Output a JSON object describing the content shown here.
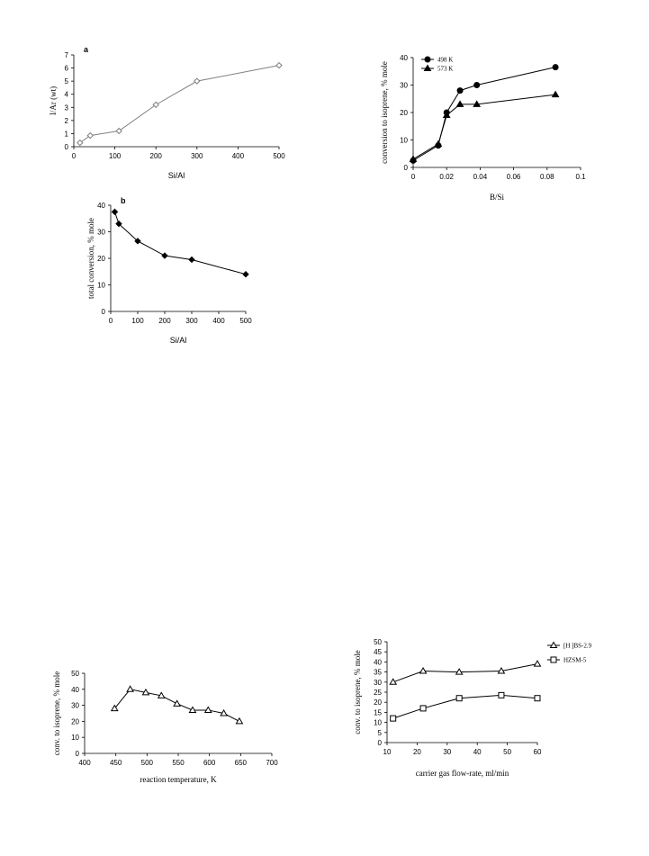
{
  "chart_data": [
    {
      "id": "a",
      "type": "line",
      "panel_label": "a",
      "xlabel": "Si/Al",
      "ylabel": "I/Ar (wt)",
      "xlim": [
        0,
        500
      ],
      "ylim": [
        0,
        7
      ],
      "xticks": [
        0,
        100,
        200,
        300,
        400,
        500
      ],
      "yticks": [
        0,
        1,
        2,
        3,
        4,
        5,
        6,
        7
      ],
      "grid": false,
      "series": [
        {
          "name": "",
          "marker": "diamond-open",
          "color": "#808080",
          "x": [
            15,
            40,
            110,
            200,
            300,
            500
          ],
          "y": [
            0.3,
            0.85,
            1.2,
            3.2,
            5.0,
            6.2
          ]
        }
      ]
    },
    {
      "id": "b",
      "type": "line",
      "panel_label": "b",
      "xlabel": "Si/Al",
      "ylabel": "total conversion, % mole",
      "xlim": [
        0,
        500
      ],
      "ylim": [
        0,
        40
      ],
      "xticks": [
        0,
        100,
        200,
        300,
        400,
        500
      ],
      "yticks": [
        0,
        10,
        20,
        30,
        40
      ],
      "grid": false,
      "series": [
        {
          "name": "",
          "marker": "diamond-filled",
          "color": "#000000",
          "x": [
            15,
            30,
            100,
            200,
            300,
            500
          ],
          "y": [
            37.5,
            33,
            26.5,
            21,
            19.5,
            14
          ]
        }
      ]
    },
    {
      "id": "c",
      "type": "line",
      "xlabel": "B/Si",
      "ylabel": "conversion to isoprene, % mole",
      "xlim": [
        0,
        0.1
      ],
      "ylim": [
        0,
        40
      ],
      "xticks": [
        "0",
        "0.02",
        "0.04",
        "0.06",
        "0.08",
        "0.1"
      ],
      "yticks": [
        0,
        10,
        20,
        30,
        40
      ],
      "grid": false,
      "legend_position": "top-left",
      "series": [
        {
          "name": "498 K",
          "marker": "circle-filled",
          "color": "#000000",
          "x": [
            0,
            0.015,
            0.02,
            0.028,
            0.038,
            0.085
          ],
          "y": [
            2.5,
            8,
            20,
            28,
            30,
            36.5
          ]
        },
        {
          "name": "573 K",
          "marker": "triangle-filled",
          "color": "#000000",
          "x": [
            0,
            0.015,
            0.02,
            0.028,
            0.038,
            0.085
          ],
          "y": [
            3,
            8.5,
            19,
            23,
            23,
            26.5
          ]
        }
      ]
    },
    {
      "id": "d",
      "type": "line",
      "xlabel": "reaction temperature, K",
      "ylabel": "conv. to isoprene, % mole",
      "xlim": [
        400,
        700
      ],
      "ylim": [
        0,
        50
      ],
      "xticks": [
        400,
        450,
        500,
        550,
        600,
        650,
        700
      ],
      "yticks": [
        0,
        10,
        20,
        30,
        40,
        50
      ],
      "grid": false,
      "series": [
        {
          "name": "",
          "marker": "triangle-open",
          "color": "#000000",
          "x": [
            448,
            473,
            498,
            523,
            548,
            573,
            598,
            623,
            648
          ],
          "y": [
            28,
            40,
            38,
            36,
            31,
            27,
            27,
            25,
            20
          ]
        }
      ]
    },
    {
      "id": "e",
      "type": "line",
      "xlabel": "carrier gas flow-rate, ml/min",
      "ylabel": "conv. to isoprene, % mole",
      "xlim": [
        10,
        60
      ],
      "ylim": [
        0,
        50
      ],
      "xticks": [
        10,
        20,
        30,
        40,
        50,
        60
      ],
      "yticks": [
        0,
        5,
        10,
        15,
        20,
        25,
        30,
        35,
        40,
        45,
        50
      ],
      "grid": false,
      "legend_position": "right",
      "series": [
        {
          "name": "[H ]BS-2.9",
          "marker": "triangle-open",
          "color": "#000000",
          "x": [
            12,
            22,
            34,
            48,
            60
          ],
          "y": [
            30,
            35.5,
            35,
            35.5,
            39
          ]
        },
        {
          "name": "HZSM-5",
          "marker": "square-open",
          "color": "#000000",
          "x": [
            12,
            22,
            34,
            48,
            60
          ],
          "y": [
            12,
            17,
            22,
            23.5,
            22
          ]
        }
      ]
    }
  ]
}
